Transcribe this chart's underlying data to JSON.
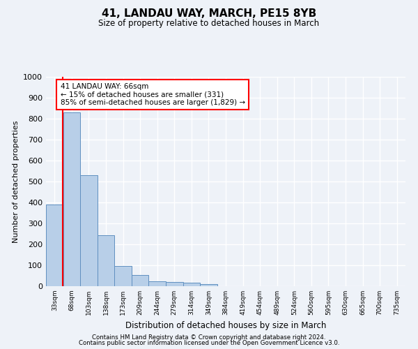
{
  "title": "41, LANDAU WAY, MARCH, PE15 8YB",
  "subtitle": "Size of property relative to detached houses in March",
  "xlabel": "Distribution of detached houses by size in March",
  "ylabel": "Number of detached properties",
  "footer_line1": "Contains HM Land Registry data © Crown copyright and database right 2024.",
  "footer_line2": "Contains public sector information licensed under the Open Government Licence v3.0.",
  "categories": [
    "33sqm",
    "68sqm",
    "103sqm",
    "138sqm",
    "173sqm",
    "209sqm",
    "244sqm",
    "279sqm",
    "314sqm",
    "349sqm",
    "384sqm",
    "419sqm",
    "454sqm",
    "489sqm",
    "524sqm",
    "560sqm",
    "595sqm",
    "630sqm",
    "665sqm",
    "700sqm",
    "735sqm"
  ],
  "bar_values": [
    390,
    830,
    530,
    242,
    97,
    52,
    22,
    20,
    16,
    11,
    0,
    0,
    0,
    0,
    0,
    0,
    0,
    0,
    0,
    0,
    0
  ],
  "bar_color": "#b8cfe8",
  "bar_edge_color": "#6090c0",
  "ylim": [
    0,
    1000
  ],
  "yticks": [
    0,
    100,
    200,
    300,
    400,
    500,
    600,
    700,
    800,
    900,
    1000
  ],
  "annotation_box_text": "41 LANDAU WAY: 66sqm\n← 15% of detached houses are smaller (331)\n85% of semi-detached houses are larger (1,829) →",
  "background_color": "#eef2f8",
  "grid_color": "#ffffff",
  "property_line_x": 0.48
}
